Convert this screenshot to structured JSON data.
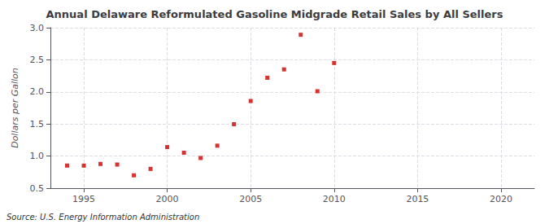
{
  "chart_data": {
    "type": "scatter",
    "title": "Annual Delaware Reformulated Gasoline Midgrade Retail Sales by All Sellers",
    "ylabel": "Dollars per Gallon",
    "annotations": [
      "Source: U.S. Energy Information Administration"
    ],
    "x": [
      1994,
      1995,
      1996,
      1997,
      1998,
      1999,
      2000,
      2001,
      2002,
      2003,
      2004,
      2005,
      2006,
      2007,
      2008,
      2009,
      2010
    ],
    "values": [
      0.852,
      0.851,
      0.877,
      0.868,
      0.7,
      0.8,
      1.14,
      1.052,
      0.97,
      1.162,
      1.496,
      1.858,
      2.22,
      2.35,
      2.89,
      2.01,
      2.45
    ],
    "color": "#cc0000",
    "marker": "square",
    "xlim": [
      1993,
      2022
    ],
    "xticks": [
      1995,
      2000,
      2005,
      2010,
      2015,
      2020
    ],
    "ylim": [
      0.5,
      3.0
    ],
    "yticks": [
      0.5,
      {
        "value": 1.0,
        "label": "1.0"
      },
      1.5,
      {
        "value": 2.0,
        "label": "2.0"
      },
      2.5,
      {
        "value": 3.0,
        "label": "3.0"
      }
    ],
    "grid": true
  }
}
